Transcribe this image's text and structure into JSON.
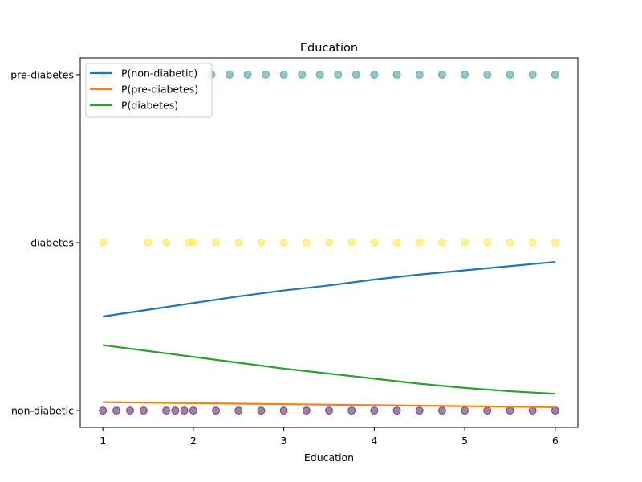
{
  "chart_data": {
    "type": "scatter",
    "title": "Education",
    "xlabel": "Education",
    "ylabel": "",
    "xlim": [
      0.75,
      6.25
    ],
    "ylim": [
      -0.1,
      2.1
    ],
    "x_ticks": [
      1,
      2,
      3,
      4,
      5,
      6
    ],
    "x_tick_labels": [
      "1",
      "2",
      "3",
      "4",
      "5",
      "6"
    ],
    "y_ticks": [
      0,
      1,
      2
    ],
    "y_tick_labels": [
      "non-diabetic",
      "diabetes",
      "pre-diabetes"
    ],
    "legend": {
      "placement": "top-left"
    },
    "grid": false,
    "scatter_groups": [
      {
        "class": "non-diabetic",
        "y": 0,
        "color": "#440154",
        "x": [
          1.0,
          1.15,
          1.3,
          1.45,
          1.7,
          1.8,
          1.9,
          2.0,
          2.25,
          2.5,
          2.75,
          3.0,
          3.25,
          3.5,
          3.75,
          4.0,
          4.25,
          4.5,
          4.75,
          5.0,
          5.25,
          5.5,
          5.75,
          6.0
        ]
      },
      {
        "class": "diabetes",
        "y": 1,
        "color": "#fde725",
        "x": [
          1.0,
          1.5,
          1.7,
          1.95,
          2.0,
          2.25,
          2.5,
          2.75,
          3.0,
          3.25,
          3.5,
          3.75,
          4.0,
          4.25,
          4.5,
          4.75,
          5.0,
          5.25,
          5.5,
          5.75,
          6.0
        ]
      },
      {
        "class": "pre-diabetes",
        "y": 2,
        "color": "#21918c",
        "x": [
          1.0,
          2.0,
          2.2,
          2.4,
          2.6,
          2.8,
          3.0,
          3.2,
          3.4,
          3.6,
          3.8,
          4.0,
          4.25,
          4.5,
          4.75,
          5.0,
          5.25,
          5.5,
          5.75,
          6.0
        ]
      }
    ],
    "series": [
      {
        "name": "P(non-diabetic)",
        "color": "#1f77b4",
        "x": [
          1,
          1.5,
          2,
          2.5,
          3,
          3.5,
          4,
          4.5,
          5,
          5.5,
          6
        ],
        "y": [
          0.56,
          0.6,
          0.64,
          0.68,
          0.715,
          0.745,
          0.78,
          0.81,
          0.835,
          0.86,
          0.885
        ]
      },
      {
        "name": "P(pre-diabetes)",
        "color": "#ff7f0e",
        "x": [
          1,
          1.5,
          2,
          2.5,
          3,
          3.5,
          4,
          4.5,
          5,
          5.5,
          6
        ],
        "y": [
          0.05,
          0.047,
          0.044,
          0.041,
          0.038,
          0.035,
          0.032,
          0.029,
          0.026,
          0.023,
          0.02
        ]
      },
      {
        "name": "P(diabetes)",
        "color": "#2ca02c",
        "x": [
          1,
          1.5,
          2,
          2.5,
          3,
          3.5,
          4,
          4.5,
          5,
          5.5,
          6
        ],
        "y": [
          0.39,
          0.355,
          0.32,
          0.285,
          0.25,
          0.22,
          0.19,
          0.16,
          0.135,
          0.115,
          0.1
        ]
      }
    ]
  }
}
